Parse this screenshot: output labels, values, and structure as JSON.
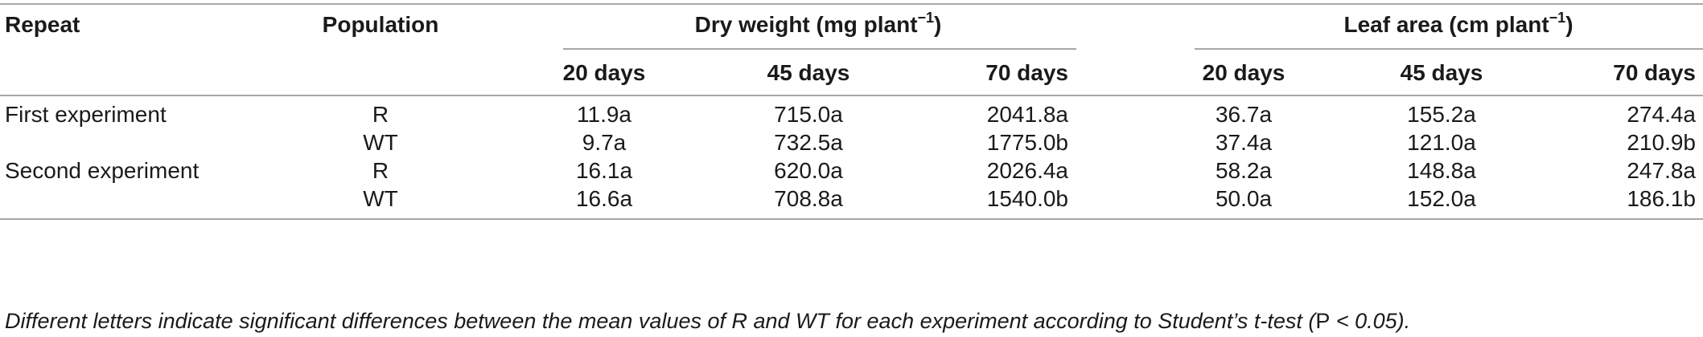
{
  "table": {
    "headers": {
      "repeat": "Repeat",
      "population": "Population",
      "dry_weight_prefix": "Dry weight (mg plant",
      "dry_weight_sup": "−1",
      "dry_weight_suffix": ")",
      "leaf_area_prefix": "Leaf area (cm plant",
      "leaf_area_sup": "−1",
      "leaf_area_suffix": ")"
    },
    "day_headers": [
      "20 days",
      "45 days",
      "70 days",
      "20 days",
      "45 days",
      "70 days"
    ],
    "rows": [
      {
        "repeat": "First experiment",
        "population": "R",
        "dw20": "11.9a",
        "dw45": "715.0a",
        "dw70": "2041.8a",
        "la20": "36.7a",
        "la45": "155.2a",
        "la70": "274.4a"
      },
      {
        "repeat": "",
        "population": "WT",
        "dw20": "9.7a",
        "dw45": "732.5a",
        "dw70": "1775.0b",
        "la20": "37.4a",
        "la45": "121.0a",
        "la70": "210.9b"
      },
      {
        "repeat": "Second experiment",
        "population": "R",
        "dw20": "16.1a",
        "dw45": "620.0a",
        "dw70": "2026.4a",
        "la20": "58.2a",
        "la45": "148.8a",
        "la70": "247.8a"
      },
      {
        "repeat": "",
        "population": "WT",
        "dw20": "16.6a",
        "dw45": "708.8a",
        "dw70": "1540.0b",
        "la20": "50.0a",
        "la45": "152.0a",
        "la70": "186.1b"
      }
    ]
  },
  "footnote": {
    "text_before": "Different letters indicate significant differences between the mean values of R and WT for each experiment according to Student’s t-test (",
    "p_letter": "P",
    "text_after": " < 0.05)."
  }
}
